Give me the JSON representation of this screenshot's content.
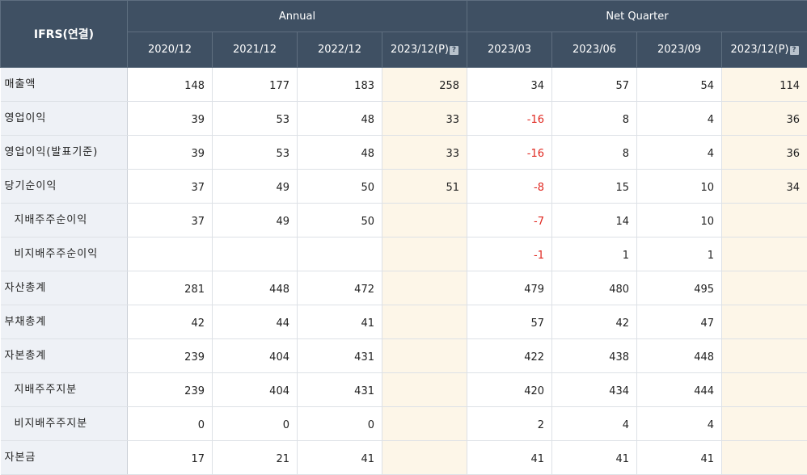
{
  "header": {
    "corner_label": "IFRS(연결)",
    "annual_label": "Annual",
    "quarter_label": "Net Quarter",
    "annual_periods": [
      "2020/12",
      "2021/12",
      "2022/12",
      "2023/12(P)"
    ],
    "quarter_periods": [
      "2023/03",
      "2023/06",
      "2023/09",
      "2023/12(P)"
    ],
    "estimate_icon_glyph": "?"
  },
  "colors": {
    "header_bg": "#3f5063",
    "label_bg": "#eef1f6",
    "estimate_bg": "#fdf6e8",
    "negative_text": "#e0271f"
  },
  "rows": [
    {
      "label": "매출액",
      "sub": false,
      "values": [
        "148",
        "177",
        "183",
        "258",
        "34",
        "57",
        "54",
        "114"
      ]
    },
    {
      "label": "영업이익",
      "sub": false,
      "values": [
        "39",
        "53",
        "48",
        "33",
        "-16",
        "8",
        "4",
        "36"
      ]
    },
    {
      "label": "영업이익(발표기준)",
      "sub": false,
      "values": [
        "39",
        "53",
        "48",
        "33",
        "-16",
        "8",
        "4",
        "36"
      ]
    },
    {
      "label": "당기순이익",
      "sub": false,
      "values": [
        "37",
        "49",
        "50",
        "51",
        "-8",
        "15",
        "10",
        "34"
      ]
    },
    {
      "label": "지배주주순이익",
      "sub": true,
      "values": [
        "37",
        "49",
        "50",
        "",
        "-7",
        "14",
        "10",
        ""
      ]
    },
    {
      "label": "비지배주주순이익",
      "sub": true,
      "values": [
        "",
        "",
        "",
        "",
        "-1",
        "1",
        "1",
        ""
      ]
    },
    {
      "label": "자산총계",
      "sub": false,
      "values": [
        "281",
        "448",
        "472",
        "",
        "479",
        "480",
        "495",
        ""
      ]
    },
    {
      "label": "부채총계",
      "sub": false,
      "values": [
        "42",
        "44",
        "41",
        "",
        "57",
        "42",
        "47",
        ""
      ]
    },
    {
      "label": "자본총계",
      "sub": false,
      "values": [
        "239",
        "404",
        "431",
        "",
        "422",
        "438",
        "448",
        ""
      ]
    },
    {
      "label": "지배주주지분",
      "sub": true,
      "values": [
        "239",
        "404",
        "431",
        "",
        "420",
        "434",
        "444",
        ""
      ]
    },
    {
      "label": "비지배주주지분",
      "sub": true,
      "values": [
        "0",
        "0",
        "0",
        "",
        "2",
        "4",
        "4",
        ""
      ]
    },
    {
      "label": "자본금",
      "sub": false,
      "values": [
        "17",
        "21",
        "41",
        "",
        "41",
        "41",
        "41",
        ""
      ]
    }
  ]
}
